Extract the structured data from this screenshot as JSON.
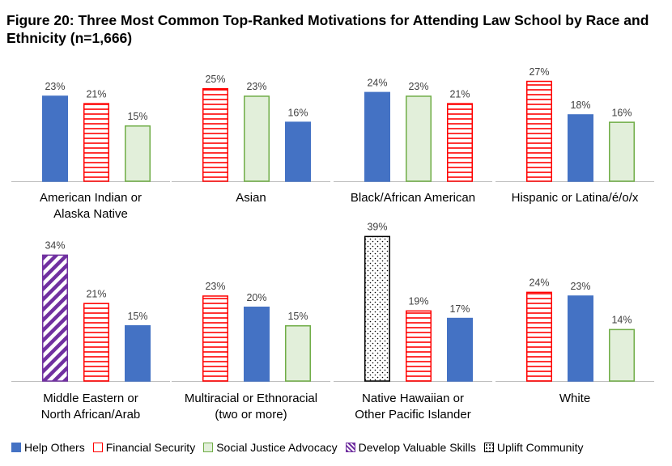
{
  "title": "Figure 20: Three Most Common Top-Ranked Motivations for Attending Law School by Race and Ethnicity (n=1,666)",
  "legend": [
    {
      "key": "help",
      "label": "Help Others"
    },
    {
      "key": "fin",
      "label": "Financial Security"
    },
    {
      "key": "soc",
      "label": "Social Justice Advocacy"
    },
    {
      "key": "skill",
      "label": "Develop Valuable Skills"
    },
    {
      "key": "uplift",
      "label": "Uplift Community"
    }
  ],
  "colors": {
    "help": "#4472C4",
    "fin": "#FF0000",
    "soc": "#70AD47",
    "soc_fill": "#E2EFDA",
    "skill": "#7030A0",
    "uplift": "#000000",
    "axis": "#BFBFBF"
  },
  "chart_data": [
    {
      "type": "bar",
      "title": "",
      "categories": [
        "American Indian or",
        "Alaska Native"
      ],
      "group": "American Indian or Alaska Native",
      "ylim": [
        0,
        40
      ],
      "bars": [
        {
          "series": "help",
          "value": 23,
          "label": "23%"
        },
        {
          "series": "fin",
          "value": 21,
          "label": "21%"
        },
        {
          "series": "soc",
          "value": 15,
          "label": "15%"
        }
      ]
    },
    {
      "type": "bar",
      "title": "",
      "categories": [
        "Asian"
      ],
      "group": "Asian",
      "ylim": [
        0,
        40
      ],
      "bars": [
        {
          "series": "fin",
          "value": 25,
          "label": "25%"
        },
        {
          "series": "soc",
          "value": 23,
          "label": "23%"
        },
        {
          "series": "help",
          "value": 16,
          "label": "16%"
        }
      ]
    },
    {
      "type": "bar",
      "title": "",
      "categories": [
        "Black/African American"
      ],
      "group": "Black/African American",
      "ylim": [
        0,
        40
      ],
      "bars": [
        {
          "series": "help",
          "value": 24,
          "label": "24%"
        },
        {
          "series": "soc",
          "value": 23,
          "label": "23%"
        },
        {
          "series": "fin",
          "value": 21,
          "label": "21%"
        }
      ]
    },
    {
      "type": "bar",
      "title": "",
      "categories": [
        "Hispanic or Latina/é/o/x"
      ],
      "group": "Hispanic or Latina/é/o/x",
      "ylim": [
        0,
        40
      ],
      "bars": [
        {
          "series": "fin",
          "value": 27,
          "label": "27%"
        },
        {
          "series": "help",
          "value": 18,
          "label": "18%"
        },
        {
          "series": "soc",
          "value": 16,
          "label": "16%"
        }
      ]
    },
    {
      "type": "bar",
      "title": "",
      "categories": [
        "Middle Eastern or",
        "North African/Arab"
      ],
      "group": "Middle Eastern or North African/Arab",
      "ylim": [
        0,
        40
      ],
      "bars": [
        {
          "series": "skill",
          "value": 34,
          "label": "34%"
        },
        {
          "series": "fin",
          "value": 21,
          "label": "21%"
        },
        {
          "series": "help",
          "value": 15,
          "label": "15%"
        }
      ]
    },
    {
      "type": "bar",
      "title": "",
      "categories": [
        "Multiracial or Ethnoracial",
        "(two or more)"
      ],
      "group": "Multiracial or Ethnoracial (two or more)",
      "ylim": [
        0,
        40
      ],
      "bars": [
        {
          "series": "fin",
          "value": 23,
          "label": "23%"
        },
        {
          "series": "help",
          "value": 20,
          "label": "20%"
        },
        {
          "series": "soc",
          "value": 15,
          "label": "15%"
        }
      ]
    },
    {
      "type": "bar",
      "title": "",
      "categories": [
        "Native Hawaiian or",
        "Other Pacific Islander"
      ],
      "group": "Native Hawaiian or Other Pacific Islander",
      "ylim": [
        0,
        40
      ],
      "bars": [
        {
          "series": "uplift",
          "value": 39,
          "label": "39%"
        },
        {
          "series": "fin",
          "value": 19,
          "label": "19%"
        },
        {
          "series": "help",
          "value": 17,
          "label": "17%"
        }
      ]
    },
    {
      "type": "bar",
      "title": "",
      "categories": [
        "White"
      ],
      "group": "White",
      "ylim": [
        0,
        40
      ],
      "bars": [
        {
          "series": "fin",
          "value": 24,
          "label": "24%"
        },
        {
          "series": "help",
          "value": 23,
          "label": "23%"
        },
        {
          "series": "soc",
          "value": 14,
          "label": "14%"
        }
      ]
    }
  ]
}
